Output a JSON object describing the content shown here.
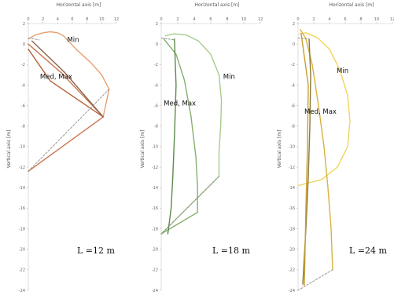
{
  "chart_data": [
    {
      "type": "line",
      "xlabel": "Horizontal axis [m]",
      "ylabel": "Vertical axis [m]",
      "xlim": [
        0,
        12
      ],
      "ylim": [
        -24,
        2
      ],
      "xticks": [
        "0",
        "2",
        "4",
        "6",
        "8",
        "10",
        "12"
      ],
      "yticks": [
        "2",
        "0",
        "-2",
        "-4",
        "-6",
        "-8",
        "-10",
        "-12",
        "-14",
        "-16",
        "-18",
        "-20",
        "-22",
        "-24"
      ],
      "length_label": "L =12 m",
      "annotations": [
        {
          "text": "Min",
          "x": 5.3,
          "y": 0.2
        },
        {
          "text": "Med, Max",
          "x": 1.6,
          "y": -3.4
        }
      ],
      "series": [
        {
          "color": "#e8a070",
          "width": 1.4,
          "dash": false,
          "points": [
            [
              0,
              0.5
            ],
            [
              1,
              0.9
            ],
            [
              2,
              1.1
            ],
            [
              3,
              1.2
            ],
            [
              4,
              1.1
            ],
            [
              4.8,
              0.8
            ],
            [
              6.5,
              -0.5
            ],
            [
              8.5,
              -1.8
            ],
            [
              10,
              -3
            ],
            [
              11,
              -4.4
            ],
            [
              10.2,
              -7.1
            ]
          ]
        },
        {
          "color": "#c87850",
          "width": 1.4,
          "dash": false,
          "points": [
            [
              0,
              0
            ],
            [
              4.5,
              -2.8
            ],
            [
              10.2,
              -7.1
            ],
            [
              0,
              -12.4
            ]
          ]
        },
        {
          "color": "#8a6248",
          "width": 1.4,
          "dash": false,
          "points": [
            [
              0.5,
              0.3
            ],
            [
              5,
              -2.8
            ],
            [
              10.2,
              -7.1
            ]
          ]
        },
        {
          "color": "#b86038",
          "width": 1.4,
          "dash": false,
          "points": [
            [
              0,
              -0.5
            ],
            [
              3,
              -3.6
            ],
            [
              10.2,
              -7.1
            ]
          ]
        },
        {
          "color": "#8a8a8a",
          "width": 0.9,
          "dash": true,
          "points": [
            [
              0,
              0.6
            ],
            [
              1.5,
              0.4
            ]
          ]
        },
        {
          "color": "#8a8a8a",
          "width": 0.9,
          "dash": true,
          "points": [
            [
              11,
              -4.4
            ],
            [
              0,
              -12.4
            ]
          ]
        }
      ]
    },
    {
      "type": "line",
      "xlabel": "Horizontal axis [m]",
      "ylabel": "Vertical axis [m]",
      "xlim": [
        0,
        12
      ],
      "ylim": [
        -24,
        2
      ],
      "xticks": [
        "0",
        "2",
        "4",
        "6",
        "8",
        "10",
        "12"
      ],
      "yticks": [
        "2",
        "0",
        "-2",
        "-4",
        "-6",
        "-8",
        "-10",
        "-12",
        "-14",
        "-16",
        "-18",
        "-20",
        "-22",
        "-24"
      ],
      "length_label": "L =18 m",
      "annotations": [
        {
          "text": "Min",
          "x": 7.5,
          "y": -3.4
        },
        {
          "text": "Med, Max",
          "x": 0.3,
          "y": -6.0
        }
      ],
      "series": [
        {
          "color": "#a8cc8c",
          "width": 1.4,
          "dash": false,
          "points": [
            [
              0.5,
              0.8
            ],
            [
              1.5,
              1.0
            ],
            [
              3,
              0.9
            ],
            [
              4.5,
              0.3
            ],
            [
              6,
              -1
            ],
            [
              7,
              -3
            ],
            [
              7.3,
              -5.5
            ],
            [
              7.2,
              -8
            ],
            [
              7,
              -10.5
            ],
            [
              7,
              -12.9
            ],
            [
              0,
              -18.5
            ]
          ]
        },
        {
          "color": "#86b070",
          "width": 1.4,
          "dash": false,
          "points": [
            [
              0.3,
              0.5
            ],
            [
              1.8,
              -1
            ],
            [
              2.8,
              -3.5
            ],
            [
              3.6,
              -7
            ],
            [
              4.2,
              -11
            ],
            [
              4.4,
              -14
            ],
            [
              4.4,
              -16.4
            ],
            [
              0,
              -18.5
            ]
          ]
        },
        {
          "color": "#5e8a4c",
          "width": 1.4,
          "dash": false,
          "points": [
            [
              1.6,
              0.5
            ],
            [
              1.8,
              -4
            ],
            [
              1.6,
              -9
            ],
            [
              1.4,
              -13
            ],
            [
              1.2,
              -16
            ],
            [
              0.8,
              -18.5
            ]
          ]
        },
        {
          "color": "#8a8a8a",
          "width": 0.9,
          "dash": true,
          "points": [
            [
              0,
              0.6
            ],
            [
              1.6,
              0.4
            ]
          ]
        },
        {
          "color": "#8a8a8a",
          "width": 0.9,
          "dash": true,
          "points": [
            [
              7,
              -12.9
            ],
            [
              0,
              -18.5
            ]
          ]
        }
      ]
    },
    {
      "type": "line",
      "xlabel": "Horizontal axis [m]",
      "ylabel": "Vertical axis [m]",
      "xlim": [
        0,
        12
      ],
      "ylim": [
        -24,
        2
      ],
      "xticks": [
        "0",
        "2",
        "4",
        "6",
        "8",
        "10",
        "12"
      ],
      "yticks": [
        "2",
        "0",
        "-2",
        "-4",
        "-6",
        "-8",
        "-10",
        "-12",
        "-14",
        "-16",
        "-18",
        "-20",
        "-22",
        "-24"
      ],
      "length_label": "L =24 m",
      "annotations": [
        {
          "text": "Min",
          "x": 4.9,
          "y": -2.8
        },
        {
          "text": "Med, Max",
          "x": 0.8,
          "y": -6.8
        }
      ],
      "series": [
        {
          "color": "#f2d45c",
          "width": 1.4,
          "dash": false,
          "points": [
            [
              0.2,
              1
            ],
            [
              1,
              1.1
            ],
            [
              2.5,
              0.6
            ],
            [
              4,
              -0.5
            ],
            [
              5.3,
              -2.5
            ],
            [
              6.3,
              -5
            ],
            [
              6.6,
              -7.5
            ],
            [
              6.3,
              -10
            ],
            [
              5,
              -12
            ],
            [
              3,
              -13.2
            ],
            [
              0,
              -13.8
            ]
          ]
        },
        {
          "color": "#d8b240",
          "width": 1.4,
          "dash": false,
          "points": [
            [
              0.3,
              1.4
            ],
            [
              1,
              0.5
            ],
            [
              1.8,
              -2
            ],
            [
              2.6,
              -6
            ],
            [
              3.3,
              -10
            ],
            [
              3.8,
              -14
            ],
            [
              4.2,
              -18
            ],
            [
              4.4,
              -22
            ]
          ]
        },
        {
          "color": "#8a7a3a",
          "width": 1.4,
          "dash": false,
          "points": [
            [
              1.4,
              0.5
            ],
            [
              1.6,
              -3
            ],
            [
              1.5,
              -8
            ],
            [
              1.3,
              -13
            ],
            [
              1,
              -18
            ],
            [
              0.6,
              -23.4
            ]
          ]
        },
        {
          "color": "#c8a030",
          "width": 1.4,
          "dash": false,
          "points": [
            [
              0.4,
              1
            ],
            [
              1.3,
              -4
            ],
            [
              1.2,
              -10
            ],
            [
              1,
              -16
            ],
            [
              0.8,
              -23.5
            ]
          ]
        },
        {
          "color": "#8a8a8a",
          "width": 0.9,
          "dash": true,
          "points": [
            [
              0,
              0.6
            ],
            [
              1.4,
              0.5
            ]
          ]
        },
        {
          "color": "#8a8a8a",
          "width": 0.9,
          "dash": true,
          "points": [
            [
              4.4,
              -22
            ],
            [
              0,
              -24
            ]
          ]
        }
      ]
    }
  ]
}
